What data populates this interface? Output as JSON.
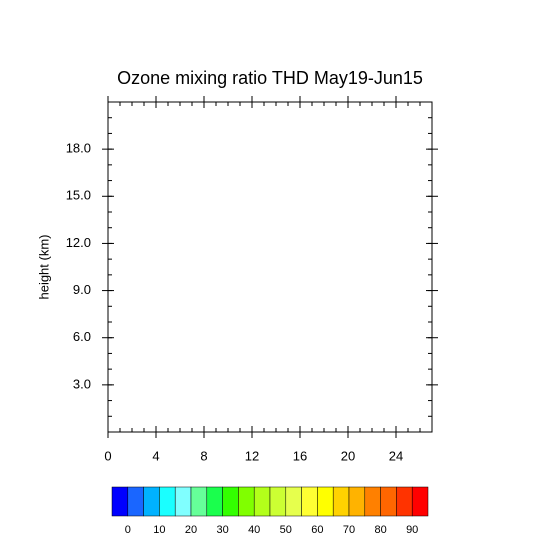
{
  "chart_data": {
    "type": "contour",
    "title": "Ozone mixing ratio THD May19-Jun15",
    "y_label": "height (km)",
    "xlim": [
      0,
      27
    ],
    "xticks": [
      0,
      4,
      8,
      12,
      16,
      20,
      24
    ],
    "ylim": [
      0,
      21
    ],
    "yticks": [
      {
        "value": 3,
        "label": "3.0"
      },
      {
        "value": 6,
        "label": "6.0"
      },
      {
        "value": 9,
        "label": "9.0"
      },
      {
        "value": 12,
        "label": "12.0"
      },
      {
        "value": 15,
        "label": "15.0"
      },
      {
        "value": 18,
        "label": "18.0"
      }
    ],
    "colorbar": {
      "levels": [
        0,
        5,
        10,
        15,
        20,
        25,
        30,
        35,
        40,
        45,
        50,
        55,
        60,
        65,
        70,
        75,
        80,
        85,
        90
      ],
      "labels": [
        0,
        10,
        20,
        30,
        40,
        50,
        60,
        70,
        80,
        90
      ],
      "colors": [
        "#0000ff",
        "#1a66ff",
        "#00b2ff",
        "#1affff",
        "#80ffff",
        "#66ff99",
        "#1aff4d",
        "#33ff00",
        "#80ff00",
        "#b3ff1a",
        "#ccff33",
        "#e6ff4d",
        "#ffff33",
        "#ffff00",
        "#ffd200",
        "#ffb300",
        "#ff8000",
        "#ff6600",
        "#ff3300",
        "#ff0000"
      ]
    }
  }
}
